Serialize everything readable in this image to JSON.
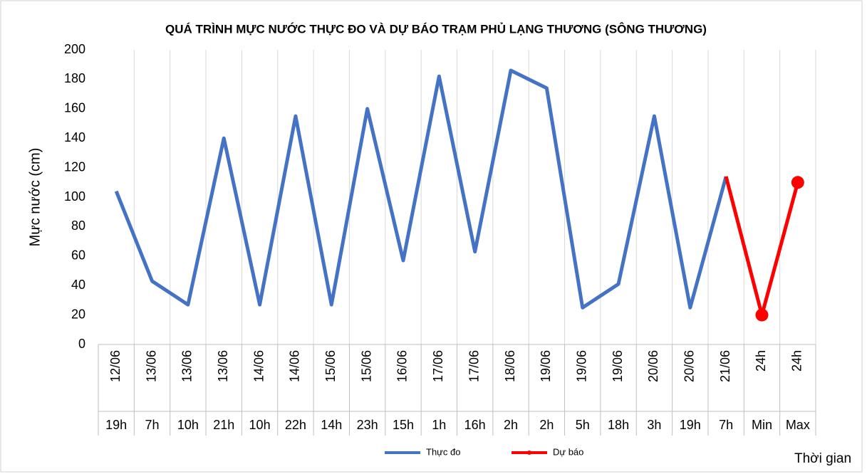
{
  "chart_data": {
    "type": "line",
    "title": "QUÁ TRÌNH MỰC NƯỚC THỰC ĐO VÀ DỰ BÁO TRẠM PHỦ LẠNG THƯƠNG (SÔNG THƯƠNG)",
    "y_label": "Mực nước (cm)",
    "x_label": "Thời gian",
    "categories": [
      "12/06",
      "13/06",
      "13/06",
      "13/06",
      "14/06",
      "14/06",
      "15/06",
      "15/06",
      "16/06",
      "17/06",
      "17/06",
      "18/06",
      "19/06",
      "19/06",
      "19/06",
      "20/06",
      "20/06",
      "21/06",
      "24h",
      "24h"
    ],
    "subcategories": [
      "19h",
      "7h",
      "10h",
      "21h",
      "10h",
      "22h",
      "14h",
      "23h",
      "15h",
      "1h",
      "16h",
      "2h",
      "2h",
      "5h",
      "18h",
      "3h",
      "19h",
      "7h",
      "Min",
      "Max"
    ],
    "series": [
      {
        "name": "Thực đo",
        "color": "#4472c4",
        "values": [
          104,
          43,
          27,
          140,
          27,
          155,
          27,
          160,
          57,
          182,
          63,
          186,
          174,
          25,
          41,
          155,
          25,
          114,
          null,
          null
        ]
      },
      {
        "name": "Dự báo",
        "color": "#ff0000",
        "values": [
          null,
          null,
          null,
          null,
          null,
          null,
          null,
          null,
          null,
          null,
          null,
          null,
          null,
          null,
          null,
          null,
          null,
          114,
          20,
          110
        ]
      }
    ],
    "ylim": [
      0,
      200
    ],
    "yticks": [
      0,
      20,
      40,
      60,
      80,
      100,
      120,
      140,
      160,
      180,
      200
    ],
    "grid": "x",
    "legend": "bottom"
  }
}
